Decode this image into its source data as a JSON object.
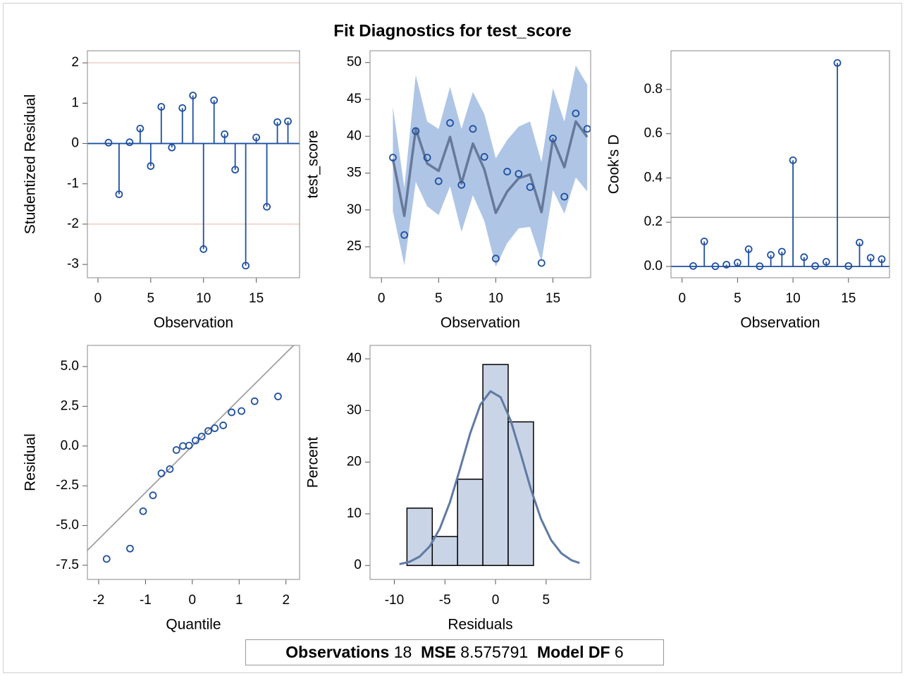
{
  "title": "Fit Diagnostics for test_score",
  "stats": [
    {
      "label": "Observations",
      "value": 18
    },
    {
      "label": "MSE",
      "value": 8.575791
    },
    {
      "label": "Model DF",
      "value": 6
    }
  ],
  "chart_data": [
    {
      "type": "needle",
      "xlabel": "Observation",
      "ylabel": "Studentized Residual",
      "x": [
        1,
        2,
        3,
        4,
        5,
        6,
        7,
        8,
        9,
        10,
        11,
        12,
        13,
        14,
        15,
        16,
        17,
        18
      ],
      "values": [
        0.02,
        -1.26,
        0.03,
        0.37,
        -0.56,
        0.91,
        -0.1,
        0.88,
        1.19,
        -2.62,
        1.07,
        0.23,
        -0.65,
        -3.03,
        0.15,
        -1.57,
        0.53,
        0.55
      ],
      "color": "#1f4fa0",
      "reflines": [
        2,
        -2
      ],
      "refline_color": "#f0cfc4",
      "xlim": [
        -1,
        19.1
      ],
      "xticks": [
        0,
        5,
        10,
        15
      ],
      "ylim": [
        -3.33,
        2.3
      ],
      "yticks": [
        -3,
        -2,
        -1,
        0,
        1,
        2
      ]
    },
    {
      "type": "band",
      "xlabel": "Observation",
      "ylabel": "test_score",
      "x": [
        1,
        2,
        3,
        4,
        5,
        6,
        7,
        8,
        9,
        10,
        11,
        12,
        13,
        14,
        15,
        16,
        17,
        18
      ],
      "observed": [
        37.1,
        26.6,
        40.7,
        37.1,
        33.9,
        41.8,
        33.4,
        41.0,
        37.2,
        23.4,
        35.2,
        34.9,
        33.1,
        22.8,
        39.7,
        31.8,
        43.1,
        41.0
      ],
      "predicted": [
        36.9,
        29.2,
        41.0,
        36.3,
        35.3,
        39.9,
        33.6,
        39.0,
        35.5,
        29.6,
        32.5,
        34.3,
        34.8,
        29.7,
        39.6,
        35.8,
        42.0,
        39.9
      ],
      "upper": [
        44,
        33,
        48.3,
        42,
        41,
        46.7,
        41,
        46,
        43,
        37,
        39.5,
        41.3,
        42,
        36.5,
        46.5,
        42,
        49.6,
        47
      ],
      "lower": [
        29.8,
        22.5,
        33.8,
        30.5,
        29.3,
        33.2,
        27,
        32,
        28.5,
        22.3,
        25.5,
        27.5,
        27.7,
        23,
        32.7,
        29.5,
        34.4,
        32.5
      ],
      "color": "#1f4fa0",
      "line_color": "#67799a",
      "band_color": "#aec5e6",
      "xlim": [
        -1,
        18.3
      ],
      "xticks": [
        0,
        5,
        10,
        15
      ],
      "ylim": [
        20.8,
        51.6
      ],
      "yticks": [
        25,
        30,
        35,
        40,
        45,
        50
      ]
    },
    {
      "type": "needle",
      "xlabel": "Observation",
      "ylabel": "Cook's D",
      "x": [
        1,
        2,
        3,
        4,
        5,
        6,
        7,
        8,
        9,
        10,
        11,
        12,
        13,
        14,
        15,
        16,
        17,
        18
      ],
      "values": [
        0.002,
        0.113,
        0.001,
        0.008,
        0.017,
        0.078,
        0.001,
        0.052,
        0.067,
        0.48,
        0.042,
        0.002,
        0.021,
        0.92,
        0.002,
        0.108,
        0.039,
        0.033
      ],
      "color": "#1f4fa0",
      "reflines": [
        0.222
      ],
      "refline_color": "#999999",
      "xlim": [
        -1,
        18.7
      ],
      "xticks": [
        0,
        5,
        10,
        15
      ],
      "ylim": [
        -0.051,
        0.975
      ],
      "yticks": [
        {
          "value": 0,
          "label": "0.0"
        },
        0.2,
        0.4,
        0.6,
        0.8
      ]
    },
    {
      "type": "qq",
      "xlabel": "Quantile",
      "ylabel": "Residual",
      "x": [
        -1.83,
        -1.33,
        -1.05,
        -0.84,
        -0.66,
        -0.48,
        -0.34,
        -0.2,
        -0.07,
        0.07,
        0.2,
        0.34,
        0.48,
        0.66,
        0.84,
        1.05,
        1.33,
        1.83
      ],
      "values": [
        -7.1,
        -6.45,
        -4.1,
        -3.1,
        -1.72,
        -1.45,
        -0.25,
        0.0,
        0.03,
        0.35,
        0.6,
        0.95,
        1.12,
        1.3,
        2.12,
        2.2,
        2.82,
        3.12
      ],
      "color": "#1f4fa0",
      "refline": {
        "intercept": 0,
        "slope": 2.928
      },
      "refline_color": "#a0a0a0",
      "xlim": [
        -2.24,
        2.29
      ],
      "xticks": [
        -2,
        -1,
        0,
        1,
        2
      ],
      "ylim": [
        -8.39,
        6.33
      ],
      "yticks": [
        -7.5,
        {
          "value": -5,
          "label": "-5.0"
        },
        -2.5,
        {
          "value": 0,
          "label": "0.0"
        },
        2.5,
        {
          "value": 5,
          "label": "5.0"
        }
      ]
    },
    {
      "type": "histogram",
      "xlabel": "Residuals",
      "ylabel": "Percent",
      "bins": [
        -8.75,
        -6.25,
        -3.75,
        -1.25,
        1.25,
        3.75
      ],
      "values": [
        11.1,
        5.6,
        16.7,
        38.9,
        27.8
      ],
      "color": "#c9d4e6",
      "curve_color": "#5f7aa3",
      "curve": {
        "x": [
          -9.5,
          -8.5,
          -7.5,
          -6.5,
          -5.5,
          -4.5,
          -3.5,
          -2.5,
          -1.5,
          -0.5,
          0.5,
          1.5,
          2.5,
          3.5,
          4.5,
          5.5,
          6.5,
          7.5,
          8.3
        ],
        "values": [
          0.26,
          0.71,
          1.72,
          3.71,
          7.15,
          12.26,
          18.77,
          25.59,
          31.12,
          33.72,
          32.58,
          28.06,
          21.54,
          14.74,
          8.99,
          4.89,
          2.37,
          1.02,
          0.48
        ]
      },
      "xlim": [
        -12.4,
        9.4
      ],
      "xticks": [
        -10,
        -5,
        0,
        5
      ],
      "ylim": [
        -2.7,
        42.6
      ],
      "yticks": [
        0,
        10,
        20,
        30,
        40
      ]
    }
  ]
}
